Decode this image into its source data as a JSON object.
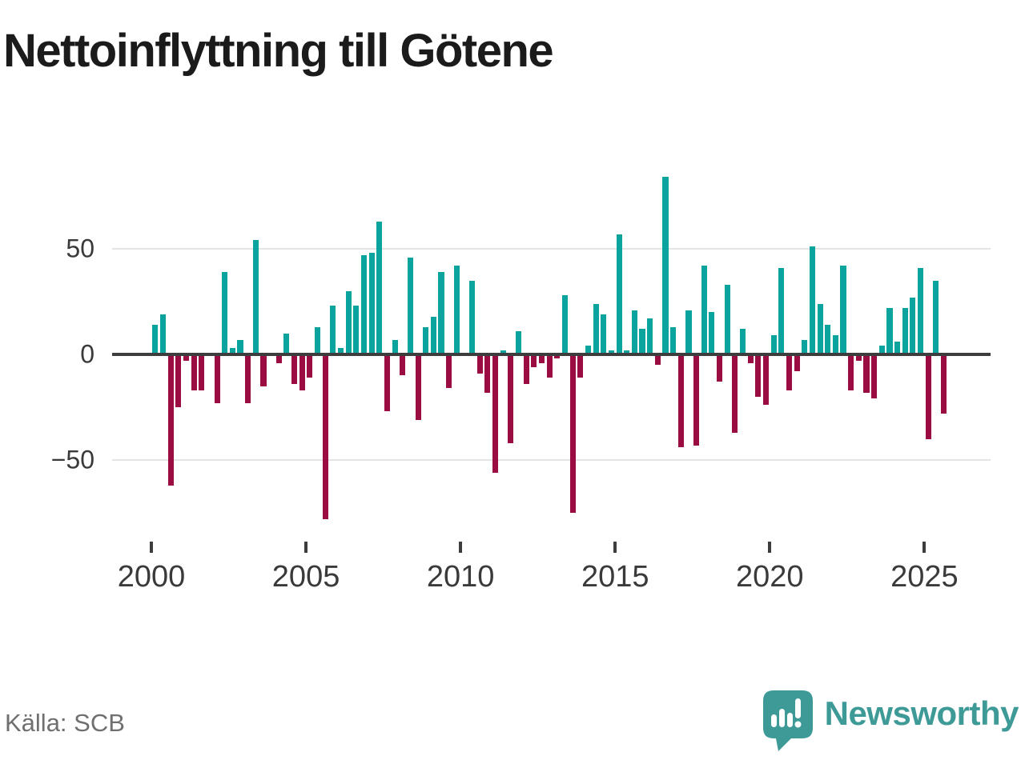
{
  "title": "Nettoinflyttning till Götene",
  "source": "Källa: SCB",
  "brand": {
    "name": "Newsworthy"
  },
  "chart_data": {
    "type": "bar",
    "title": "Nettoinflyttning till Götene",
    "xlabel": "",
    "ylabel": "",
    "ylim": [
      -85,
      90
    ],
    "grid": "horizontal",
    "legend": "none",
    "colors": {
      "positive": "#0ba39e",
      "negative": "#9b0c43"
    },
    "yticks": [
      {
        "label": "50",
        "value": 50
      },
      {
        "label": "0",
        "value": 0
      },
      {
        "label": "−50",
        "value": -50
      }
    ],
    "xticks": [
      {
        "label": "2000",
        "year": 2000
      },
      {
        "label": "2005",
        "year": 2005
      },
      {
        "label": "2010",
        "year": 2010
      },
      {
        "label": "2015",
        "year": 2015
      },
      {
        "label": "2020",
        "year": 2020
      },
      {
        "label": "2025",
        "year": 2025
      }
    ],
    "categories": [
      "2000Q1",
      "2000Q2",
      "2000Q3",
      "2000Q4",
      "2001Q1",
      "2001Q2",
      "2001Q3",
      "2001Q4",
      "2002Q1",
      "2002Q2",
      "2002Q3",
      "2002Q4",
      "2003Q1",
      "2003Q2",
      "2003Q3",
      "2003Q4",
      "2004Q1",
      "2004Q2",
      "2004Q3",
      "2004Q4",
      "2005Q1",
      "2005Q2",
      "2005Q3",
      "2005Q4",
      "2006Q1",
      "2006Q2",
      "2006Q3",
      "2006Q4",
      "2007Q1",
      "2007Q2",
      "2007Q3",
      "2007Q4",
      "2008Q1",
      "2008Q2",
      "2008Q3",
      "2008Q4",
      "2009Q1",
      "2009Q2",
      "2009Q3",
      "2009Q4",
      "2010Q1",
      "2010Q2",
      "2010Q3",
      "2010Q4",
      "2011Q1",
      "2011Q2",
      "2011Q3",
      "2011Q4",
      "2012Q1",
      "2012Q2",
      "2012Q3",
      "2012Q4",
      "2013Q1",
      "2013Q2",
      "2013Q3",
      "2013Q4",
      "2014Q1",
      "2014Q2",
      "2014Q3",
      "2014Q4",
      "2015Q1",
      "2015Q2",
      "2015Q3",
      "2015Q4",
      "2016Q1",
      "2016Q2",
      "2016Q3",
      "2016Q4",
      "2017Q1",
      "2017Q2",
      "2017Q3",
      "2017Q4",
      "2018Q1",
      "2018Q2",
      "2018Q3",
      "2018Q4",
      "2019Q1",
      "2019Q2",
      "2019Q3",
      "2019Q4",
      "2020Q1",
      "2020Q2",
      "2020Q3",
      "2020Q4",
      "2021Q1",
      "2021Q2",
      "2021Q3",
      "2021Q4",
      "2022Q1",
      "2022Q2",
      "2022Q3",
      "2022Q4",
      "2023Q1",
      "2023Q2",
      "2023Q3",
      "2023Q4",
      "2024Q1",
      "2024Q2",
      "2024Q3",
      "2024Q4",
      "2025Q1",
      "2025Q2",
      "2025Q3"
    ],
    "values": [
      14,
      19,
      -62,
      -25,
      -3,
      -17,
      -17,
      0,
      -23,
      39,
      3,
      7,
      -23,
      54,
      -15,
      0,
      -4,
      10,
      -14,
      -17,
      -11,
      13,
      -78,
      23,
      3,
      30,
      23,
      47,
      48,
      63,
      -27,
      7,
      -10,
      46,
      -31,
      13,
      18,
      39,
      -16,
      42,
      0,
      35,
      -9,
      -18,
      -56,
      2,
      -42,
      11,
      -14,
      -6,
      -4,
      -11,
      -2,
      28,
      -75,
      -11,
      4,
      24,
      19,
      2,
      57,
      2,
      21,
      12,
      17,
      -5,
      84,
      13,
      -44,
      21,
      -43,
      42,
      20,
      -13,
      33,
      -37,
      12,
      -4,
      -20,
      -24,
      9,
      41,
      -17,
      -8,
      7,
      51,
      24,
      14,
      9,
      42,
      -17,
      -3,
      -18,
      -21,
      4,
      22,
      6,
      22,
      27,
      41,
      -40,
      35,
      -28
    ]
  }
}
